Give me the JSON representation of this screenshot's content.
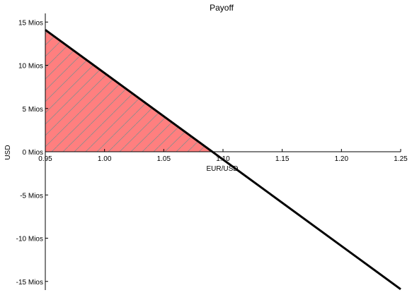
{
  "chart_data": {
    "type": "line",
    "title": "Payoff",
    "xlabel": "EUR/USD",
    "ylabel": "USD",
    "xlim": [
      0.95,
      1.25
    ],
    "ylim": [
      -16,
      16
    ],
    "x_ticks": [
      0.95,
      1.0,
      1.05,
      1.1,
      1.15,
      1.2,
      1.25
    ],
    "x_tick_labels": [
      "0.95",
      "1.00",
      "1.05",
      "1.10",
      "1.15",
      "1.20",
      "1.25"
    ],
    "y_ticks": [
      15,
      10,
      5,
      0,
      -5,
      -10,
      -15
    ],
    "y_tick_labels": [
      "15 Mios",
      "10 Mios",
      "5 Mios",
      "0 Mios",
      "-5 Mios",
      "-10 Mios",
      "-15 Mios"
    ],
    "grid": false,
    "series": [
      {
        "x": [
          0.95,
          1.25
        ],
        "y": [
          14.1,
          -15.9
        ],
        "color": "#000000"
      }
    ],
    "shaded_region": {
      "x": [
        0.95,
        1.091
      ],
      "color": "#ff7f7f",
      "hatch": "diagonal",
      "hatch_color": "#8c8c8c"
    }
  }
}
